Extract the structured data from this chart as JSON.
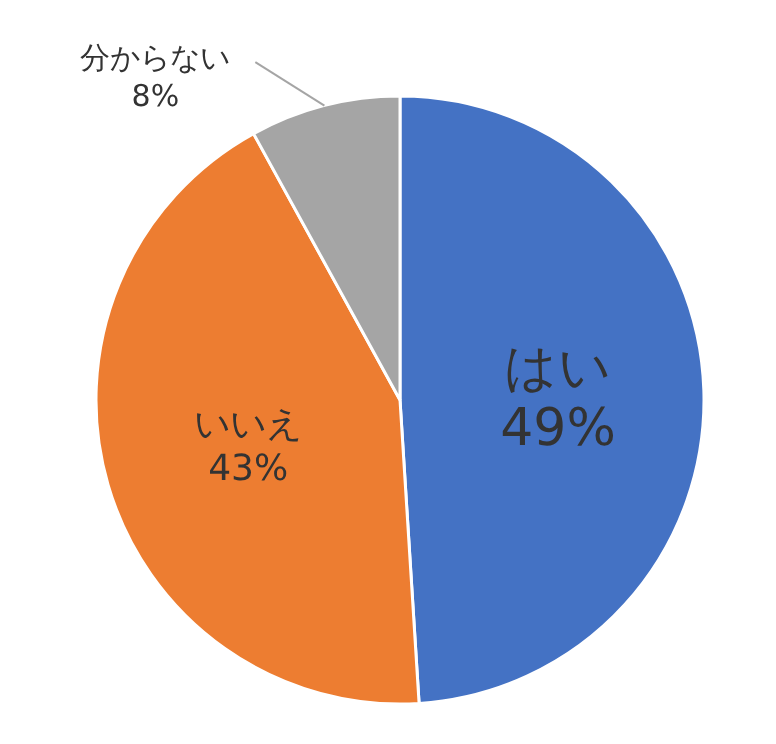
{
  "chart_data": {
    "type": "pie",
    "categories": [
      "はい",
      "いいえ",
      "分からない"
    ],
    "values": [
      49,
      43,
      8
    ],
    "colors": [
      "#4472c4",
      "#ed7d31",
      "#a5a5a5"
    ],
    "value_labels": [
      "49%",
      "43%",
      "8%"
    ]
  }
}
